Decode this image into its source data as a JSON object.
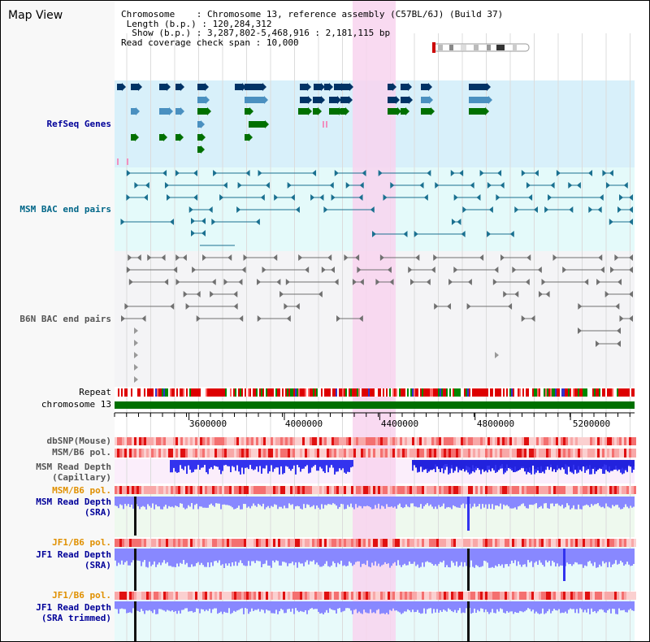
{
  "title": "Map View",
  "header": {
    "chromosome_key": "Chromosome",
    "chromosome_val": "Chromosome 13, reference assembly (C57BL/6J) (Build 37)",
    "length_key": "Length (b.p.)",
    "length_val": "120,284,312",
    "show_key": "Show (b.p.)",
    "show_val": "3,287,802-5,468,916 : 2,181,115 bp",
    "coverage_key": "Read coverage check span",
    "coverage_val": "10,000"
  },
  "tracks": {
    "refseq": "RefSeq Genes",
    "msm_bac": "MSM BAC end pairs",
    "b6n_bac": "B6N BAC end pairs",
    "repeat": "Repeat",
    "chromosome": "chromosome 13",
    "dbsnp": "dbSNP(Mouse)",
    "msm_b6_pol_1": "MSM/B6 pol.",
    "msm_depth_cap_1": "MSM Read Depth",
    "msm_depth_cap_2": "(Capillary)",
    "msm_b6_pol_2": "MSM/B6 pol.",
    "msm_depth_sra_1": "MSM Read Depth",
    "msm_depth_sra_2": "(SRA)",
    "jf1_b6_pol_1": "JF1/B6 pol.",
    "jf1_depth_sra_1": "JF1 Read Depth",
    "jf1_depth_sra_2": "(SRA)",
    "jf1_b6_pol_2": "JF1/B6 pol.",
    "jf1_depth_trim_1": "JF1 Read Depth",
    "jf1_depth_trim_2": "(SRA trimmed)"
  },
  "axis": {
    "ticks": [
      "3600000",
      "4000000",
      "4400000",
      "4800000",
      "5200000"
    ],
    "tick_values": [
      3600000,
      4000000,
      4400000,
      4800000,
      5200000
    ],
    "range": [
      3287802,
      5468916
    ]
  },
  "colors": {
    "refseq_bg": "#d8f0fa",
    "bac_bg": "#e4fafa",
    "b6n_bg": "#f4f4f6",
    "highlight": "#f8d4ee",
    "chromosome_bar": "#007000",
    "gene_dark": "#003366",
    "gene_mid": "#4a90c0",
    "gene_green": "#007000",
    "msm_pair": "#1a7090",
    "b6n_pair": "#707070",
    "track_label_blue": "#000099",
    "track_label_orange": "#e09000",
    "track_label_teal": "#006688",
    "depth_blue": "#3333ee",
    "depth_light": "#8888ff"
  }
}
